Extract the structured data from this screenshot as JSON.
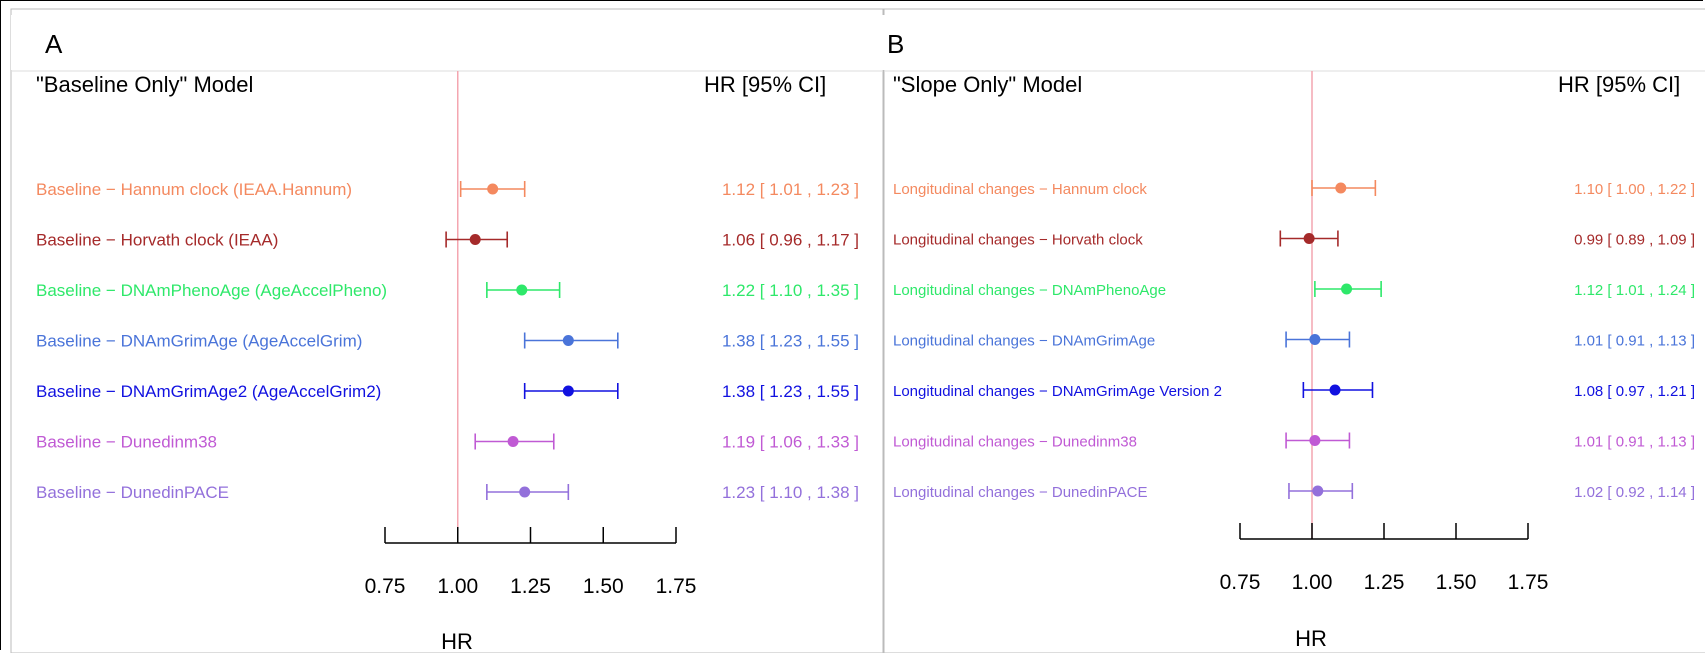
{
  "panels": [
    {
      "letter": "A",
      "title": "\"Baseline Only\" Model",
      "hr_header": "HR [95% CI]",
      "xlabel": "HR"
    },
    {
      "letter": "B",
      "title": "\"Slope Only\" Model",
      "hr_header": "HR [95% CI]",
      "xlabel": "HR"
    }
  ],
  "chart_data": [
    {
      "type": "forest",
      "title": "\"Baseline Only\" Model",
      "xlabel": "HR",
      "xlim": [
        0.75,
        1.75
      ],
      "xticks": [
        "0.75",
        "1.00",
        "1.25",
        "1.50",
        "1.75"
      ],
      "reference_line": 1.0,
      "rows": [
        {
          "label": "Baseline  − Hannum clock (IEAA.Hannum)",
          "hr": 1.12,
          "lo": 1.01,
          "hi": 1.23,
          "ci_text": "1.12 [ 1.01 , 1.23 ]",
          "color": "#f4895f"
        },
        {
          "label": "Baseline  − Horvath clock (IEAA)",
          "hr": 1.06,
          "lo": 0.96,
          "hi": 1.17,
          "ci_text": "1.06 [ 0.96 , 1.17 ]",
          "color": "#a52a2a"
        },
        {
          "label": "Baseline  − DNAmPhenoAge (AgeAccelPheno)",
          "hr": 1.22,
          "lo": 1.1,
          "hi": 1.35,
          "ci_text": "1.22 [ 1.10 , 1.35 ]",
          "color": "#2ee86a"
        },
        {
          "label": "Baseline  − DNAmGrimAge (AgeAccelGrim)",
          "hr": 1.38,
          "lo": 1.23,
          "hi": 1.55,
          "ci_text": "1.38 [ 1.23 , 1.55 ]",
          "color": "#4a74d9"
        },
        {
          "label": "Baseline  − DNAmGrimAge2 (AgeAccelGrim2)",
          "hr": 1.38,
          "lo": 1.23,
          "hi": 1.55,
          "ci_text": "1.38 [ 1.23 , 1.55 ]",
          "color": "#1111e0"
        },
        {
          "label": "Baseline  − Dunedinm38",
          "hr": 1.19,
          "lo": 1.06,
          "hi": 1.33,
          "ci_text": "1.19 [ 1.06 , 1.33 ]",
          "color": "#c05ad4"
        },
        {
          "label": "Baseline  − DunedinPACE",
          "hr": 1.23,
          "lo": 1.1,
          "hi": 1.38,
          "ci_text": "1.23 [ 1.10 , 1.38 ]",
          "color": "#9370db"
        }
      ]
    },
    {
      "type": "forest",
      "title": "\"Slope Only\" Model",
      "xlabel": "HR",
      "xlim": [
        0.75,
        1.75
      ],
      "xticks": [
        "0.75",
        "1.00",
        "1.25",
        "1.50",
        "1.75"
      ],
      "reference_line": 1.0,
      "rows": [
        {
          "label": "Longitudinal changes − Hannum clock",
          "hr": 1.1,
          "lo": 1.0,
          "hi": 1.22,
          "ci_text": "1.10 [ 1.00 , 1.22 ]",
          "color": "#f4895f"
        },
        {
          "label": "Longitudinal changes − Horvath clock",
          "hr": 0.99,
          "lo": 0.89,
          "hi": 1.09,
          "ci_text": "0.99 [ 0.89 , 1.09 ]",
          "color": "#a52a2a"
        },
        {
          "label": "Longitudinal changes − DNAmPhenoAge",
          "hr": 1.12,
          "lo": 1.01,
          "hi": 1.24,
          "ci_text": "1.12 [ 1.01 , 1.24 ]",
          "color": "#2ee86a"
        },
        {
          "label": "Longitudinal changes − DNAmGrimAge",
          "hr": 1.01,
          "lo": 0.91,
          "hi": 1.13,
          "ci_text": "1.01 [ 0.91 , 1.13 ]",
          "color": "#4a74d9"
        },
        {
          "label": "Longitudinal changes − DNAmGrimAge Version 2",
          "hr": 1.08,
          "lo": 0.97,
          "hi": 1.21,
          "ci_text": "1.08 [ 0.97 , 1.21 ]",
          "color": "#1111e0"
        },
        {
          "label": "Longitudinal changes − Dunedinm38",
          "hr": 1.01,
          "lo": 0.91,
          "hi": 1.13,
          "ci_text": "1.01 [ 0.91 , 1.13 ]",
          "color": "#c05ad4"
        },
        {
          "label": "Longitudinal changes − DunedinPACE",
          "hr": 1.02,
          "lo": 0.92,
          "hi": 1.14,
          "ci_text": "1.02 [ 0.92 , 1.14 ]",
          "color": "#9370db"
        }
      ]
    }
  ]
}
